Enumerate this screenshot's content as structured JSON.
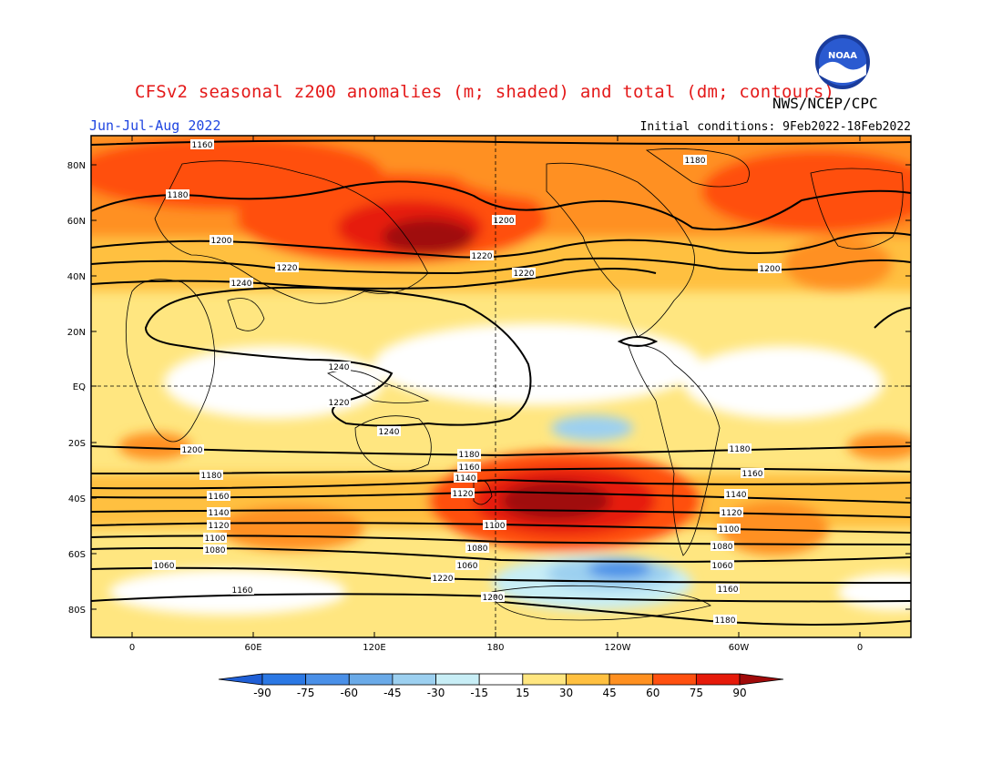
{
  "header": {
    "title": "CFSv2 seasonal z200 anomalies (m; shaded) and total (dm; contours)",
    "agency": "NWS/NCEP/CPC",
    "season": "Jun-Jul-Aug 2022",
    "initial_conditions": "Initial conditions: 9Feb2022-18Feb2022",
    "logo_text": "NOAA"
  },
  "map": {
    "lat_labels": [
      "80N",
      "60N",
      "40N",
      "20N",
      "EQ",
      "20S",
      "40S",
      "60S",
      "80S"
    ],
    "lon_labels": [
      "0",
      "60E",
      "120E",
      "180",
      "120W",
      "60W",
      "0"
    ],
    "contour_labels": [
      "1160",
      "1180",
      "1200",
      "1220",
      "1240",
      "1240",
      "1240",
      "1220",
      "1200",
      "1180",
      "1160",
      "1140",
      "1120",
      "1100",
      "1080",
      "1060",
      "1160",
      "1180",
      "1200",
      "1220",
      "1220",
      "1200",
      "1180",
      "1160",
      "1140",
      "1120",
      "1100",
      "1080",
      "1060",
      "1220",
      "1200",
      "1180",
      "1160",
      "1140",
      "1120",
      "1100",
      "1080",
      "1060"
    ]
  },
  "colorbar": {
    "labels": [
      "-90",
      "-75",
      "-60",
      "-45",
      "-30",
      "-15",
      "15",
      "30",
      "45",
      "60",
      "75",
      "90"
    ],
    "colors": [
      "#1f5fd6",
      "#2b78e4",
      "#4a90e8",
      "#6aaae8",
      "#9cd0f0",
      "#c8eef6",
      "#ffffff",
      "#ffe680",
      "#ffc040",
      "#ff9020",
      "#ff5010",
      "#e61a0a",
      "#a00a0a"
    ]
  }
}
